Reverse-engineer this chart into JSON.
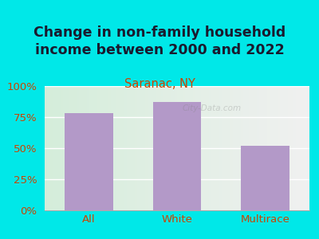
{
  "title": "Change in non-family household\nincome between 2000 and 2022",
  "subtitle": "Saranac, NY",
  "categories": [
    "All",
    "White",
    "Multirace"
  ],
  "values": [
    78,
    87,
    52
  ],
  "bar_color": "#b399c8",
  "background_color": "#00e8e8",
  "plot_bg_color_left": "#d4edda",
  "plot_bg_color_right": "#f0f0f0",
  "title_color": "#1a1a2e",
  "subtitle_color": "#cc4400",
  "axis_label_color": "#cc4400",
  "tick_label_color": "#cc4400",
  "ylim": [
    0,
    100
  ],
  "yticks": [
    0,
    25,
    50,
    75,
    100
  ],
  "title_fontsize": 12.5,
  "subtitle_fontsize": 10.5,
  "tick_fontsize": 9.5,
  "watermark": "City-Data.com"
}
